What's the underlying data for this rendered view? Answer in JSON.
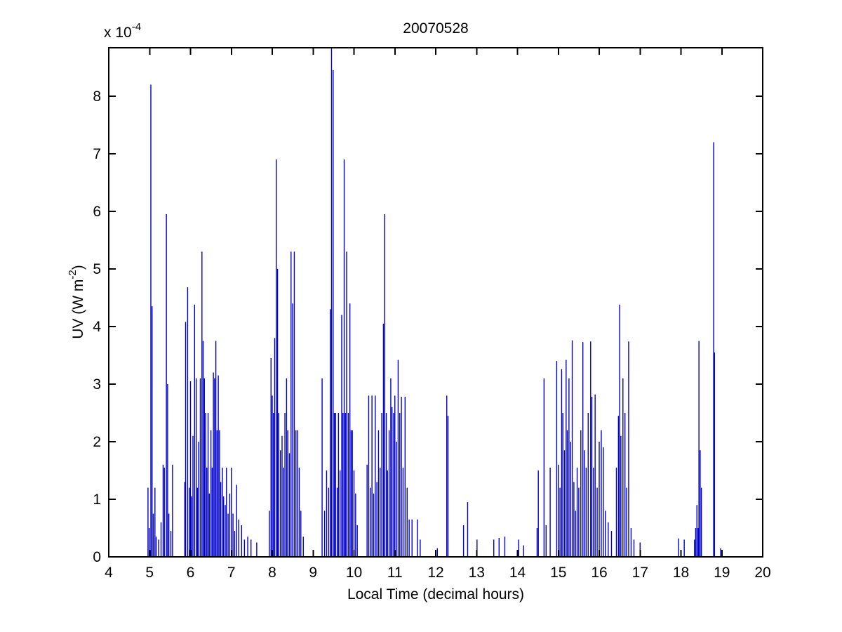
{
  "figure": {
    "background": "#ffffff",
    "axis_color": "#000000",
    "line_color": "#0000CC",
    "y_multiplier_prefix": "x 10",
    "y_multiplier_exp": "-4",
    "ylabel_prefix": "UV (W m",
    "ylabel_exp": "-2",
    "ylabel_suffix": ")"
  },
  "chart_data": {
    "type": "stem",
    "title": "20070528",
    "xlabel": "Local Time (decimal hours)",
    "ylabel": "UV (W m^-2)",
    "y_axis_multiplier": "x 10^-4",
    "series_name": "UV",
    "xlim": [
      4,
      20
    ],
    "ylim": [
      0,
      8.84
    ],
    "x_ticks": [
      4,
      5,
      6,
      7,
      8,
      9,
      10,
      11,
      12,
      13,
      14,
      15,
      16,
      17,
      18,
      19,
      20
    ],
    "y_ticks": [
      0,
      1,
      2,
      3,
      4,
      5,
      6,
      7,
      8
    ],
    "grid": false,
    "legend": false,
    "units_note": "spike values in units of 1e-4 W m^-2; x in decimal hours",
    "points": [
      [
        4.96,
        1.2
      ],
      [
        4.99,
        0.5
      ],
      [
        5.03,
        8.2
      ],
      [
        5.06,
        4.35
      ],
      [
        5.09,
        0.75
      ],
      [
        5.13,
        1.2
      ],
      [
        5.16,
        0.35
      ],
      [
        5.22,
        0.3
      ],
      [
        5.28,
        0.6
      ],
      [
        5.33,
        1.6
      ],
      [
        5.36,
        1.55
      ],
      [
        5.41,
        5.95
      ],
      [
        5.44,
        3.0
      ],
      [
        5.47,
        0.75
      ],
      [
        5.52,
        0.45
      ],
      [
        5.56,
        1.6
      ],
      [
        5.86,
        1.3
      ],
      [
        5.88,
        4.08
      ],
      [
        5.93,
        4.68
      ],
      [
        5.97,
        1.2
      ],
      [
        6.0,
        3.05
      ],
      [
        6.03,
        1.05
      ],
      [
        6.06,
        2.1
      ],
      [
        6.1,
        4.38
      ],
      [
        6.14,
        3.1
      ],
      [
        6.17,
        1.2
      ],
      [
        6.2,
        2.0
      ],
      [
        6.24,
        3.1
      ],
      [
        6.28,
        5.3
      ],
      [
        6.31,
        3.75
      ],
      [
        6.34,
        3.1
      ],
      [
        6.37,
        2.5
      ],
      [
        6.4,
        1.55
      ],
      [
        6.43,
        2.5
      ],
      [
        6.46,
        1.1
      ],
      [
        6.5,
        2.2
      ],
      [
        6.53,
        1.55
      ],
      [
        6.56,
        3.2
      ],
      [
        6.59,
        3.1
      ],
      [
        6.62,
        3.75
      ],
      [
        6.65,
        2.2
      ],
      [
        6.68,
        3.15
      ],
      [
        6.71,
        2.2
      ],
      [
        6.74,
        1.3
      ],
      [
        6.78,
        1.55
      ],
      [
        6.81,
        1.05
      ],
      [
        6.85,
        0.9
      ],
      [
        6.88,
        1.55
      ],
      [
        6.92,
        0.75
      ],
      [
        6.96,
        1.1
      ],
      [
        7.0,
        1.55
      ],
      [
        7.04,
        0.75
      ],
      [
        7.08,
        0.45
      ],
      [
        7.13,
        1.25
      ],
      [
        7.18,
        0.65
      ],
      [
        7.25,
        0.55
      ],
      [
        7.32,
        0.3
      ],
      [
        7.4,
        0.35
      ],
      [
        7.48,
        0.3
      ],
      [
        7.62,
        0.25
      ],
      [
        7.93,
        0.8
      ],
      [
        7.97,
        3.45
      ],
      [
        8.0,
        2.8
      ],
      [
        8.03,
        2.5
      ],
      [
        8.06,
        3.8
      ],
      [
        8.1,
        6.9
      ],
      [
        8.13,
        5.0
      ],
      [
        8.16,
        2.5
      ],
      [
        8.2,
        1.85
      ],
      [
        8.24,
        2.1
      ],
      [
        8.28,
        1.55
      ],
      [
        8.31,
        2.5
      ],
      [
        8.35,
        3.1
      ],
      [
        8.38,
        2.2
      ],
      [
        8.42,
        1.8
      ],
      [
        8.46,
        5.3
      ],
      [
        8.5,
        4.4
      ],
      [
        8.54,
        5.3
      ],
      [
        8.58,
        2.2
      ],
      [
        8.62,
        2.2
      ],
      [
        8.66,
        1.55
      ],
      [
        8.7,
        0.8
      ],
      [
        8.76,
        0.35
      ],
      [
        9.22,
        3.1
      ],
      [
        9.28,
        0.8
      ],
      [
        9.33,
        1.5
      ],
      [
        9.38,
        1.2
      ],
      [
        9.42,
        4.3
      ],
      [
        9.45,
        8.84
      ],
      [
        9.49,
        8.45
      ],
      [
        9.52,
        2.5
      ],
      [
        9.55,
        2.5
      ],
      [
        9.59,
        1.2
      ],
      [
        9.62,
        2.5
      ],
      [
        9.66,
        1.5
      ],
      [
        9.7,
        4.2
      ],
      [
        9.73,
        2.5
      ],
      [
        9.76,
        6.9
      ],
      [
        9.79,
        2.5
      ],
      [
        9.82,
        5.3
      ],
      [
        9.86,
        2.5
      ],
      [
        9.9,
        4.4
      ],
      [
        9.93,
        2.2
      ],
      [
        9.96,
        2.2
      ],
      [
        10.0,
        1.5
      ],
      [
        10.04,
        1.1
      ],
      [
        10.08,
        0.55
      ],
      [
        10.32,
        1.6
      ],
      [
        10.36,
        2.8
      ],
      [
        10.4,
        1.2
      ],
      [
        10.44,
        2.8
      ],
      [
        10.48,
        1.1
      ],
      [
        10.52,
        2.8
      ],
      [
        10.56,
        1.3
      ],
      [
        10.6,
        2.2
      ],
      [
        10.64,
        1.55
      ],
      [
        10.68,
        2.5
      ],
      [
        10.72,
        4.05
      ],
      [
        10.75,
        5.95
      ],
      [
        10.79,
        2.5
      ],
      [
        10.82,
        1.5
      ],
      [
        10.86,
        2.2
      ],
      [
        10.9,
        3.1
      ],
      [
        10.93,
        2.6
      ],
      [
        10.97,
        2.5
      ],
      [
        11.0,
        2.8
      ],
      [
        11.04,
        2.0
      ],
      [
        11.08,
        3.42
      ],
      [
        11.12,
        2.5
      ],
      [
        11.16,
        2.78
      ],
      [
        11.2,
        1.55
      ],
      [
        11.25,
        2.78
      ],
      [
        11.3,
        1.2
      ],
      [
        11.35,
        0.65
      ],
      [
        11.42,
        0.65
      ],
      [
        11.55,
        0.65
      ],
      [
        11.62,
        0.3
      ],
      [
        12.04,
        0.15
      ],
      [
        12.27,
        2.8
      ],
      [
        12.3,
        2.45
      ],
      [
        12.68,
        0.55
      ],
      [
        12.78,
        0.95
      ],
      [
        13.01,
        0.3
      ],
      [
        13.42,
        0.3
      ],
      [
        13.55,
        0.33
      ],
      [
        13.69,
        0.35
      ],
      [
        14.03,
        0.3
      ],
      [
        14.15,
        0.2
      ],
      [
        14.48,
        0.5
      ],
      [
        14.51,
        1.5
      ],
      [
        14.65,
        3.1
      ],
      [
        14.7,
        0.55
      ],
      [
        14.8,
        1.55
      ],
      [
        14.96,
        3.4
      ],
      [
        15.0,
        1.6
      ],
      [
        15.04,
        1.2
      ],
      [
        15.08,
        3.26
      ],
      [
        15.11,
        2.5
      ],
      [
        15.15,
        1.85
      ],
      [
        15.19,
        3.42
      ],
      [
        15.22,
        2.2
      ],
      [
        15.26,
        3.1
      ],
      [
        15.3,
        2.0
      ],
      [
        15.34,
        3.76
      ],
      [
        15.38,
        1.3
      ],
      [
        15.42,
        0.8
      ],
      [
        15.46,
        1.55
      ],
      [
        15.5,
        1.2
      ],
      [
        15.55,
        2.2
      ],
      [
        15.6,
        3.73
      ],
      [
        15.64,
        1.85
      ],
      [
        15.68,
        1.55
      ],
      [
        15.73,
        2.5
      ],
      [
        15.79,
        3.74
      ],
      [
        15.82,
        2.78
      ],
      [
        15.86,
        1.55
      ],
      [
        15.9,
        2.82
      ],
      [
        15.95,
        1.2
      ],
      [
        16.0,
        2.0
      ],
      [
        16.05,
        2.2
      ],
      [
        16.1,
        1.9
      ],
      [
        16.15,
        0.8
      ],
      [
        16.22,
        0.6
      ],
      [
        16.3,
        0.45
      ],
      [
        16.42,
        1.55
      ],
      [
        16.47,
        2.45
      ],
      [
        16.5,
        4.38
      ],
      [
        16.53,
        2.1
      ],
      [
        16.58,
        3.1
      ],
      [
        16.63,
        2.5
      ],
      [
        16.67,
        1.2
      ],
      [
        16.72,
        3.74
      ],
      [
        16.78,
        0.5
      ],
      [
        16.85,
        0.3
      ],
      [
        17.0,
        0.25
      ],
      [
        17.94,
        0.32
      ],
      [
        18.08,
        0.3
      ],
      [
        18.33,
        0.3
      ],
      [
        18.36,
        0.5
      ],
      [
        18.39,
        0.9
      ],
      [
        18.42,
        0.5
      ],
      [
        18.44,
        3.75
      ],
      [
        18.47,
        1.85
      ],
      [
        18.5,
        1.2
      ],
      [
        18.8,
        7.2
      ],
      [
        18.82,
        3.55
      ],
      [
        18.97,
        0.15
      ]
    ]
  }
}
